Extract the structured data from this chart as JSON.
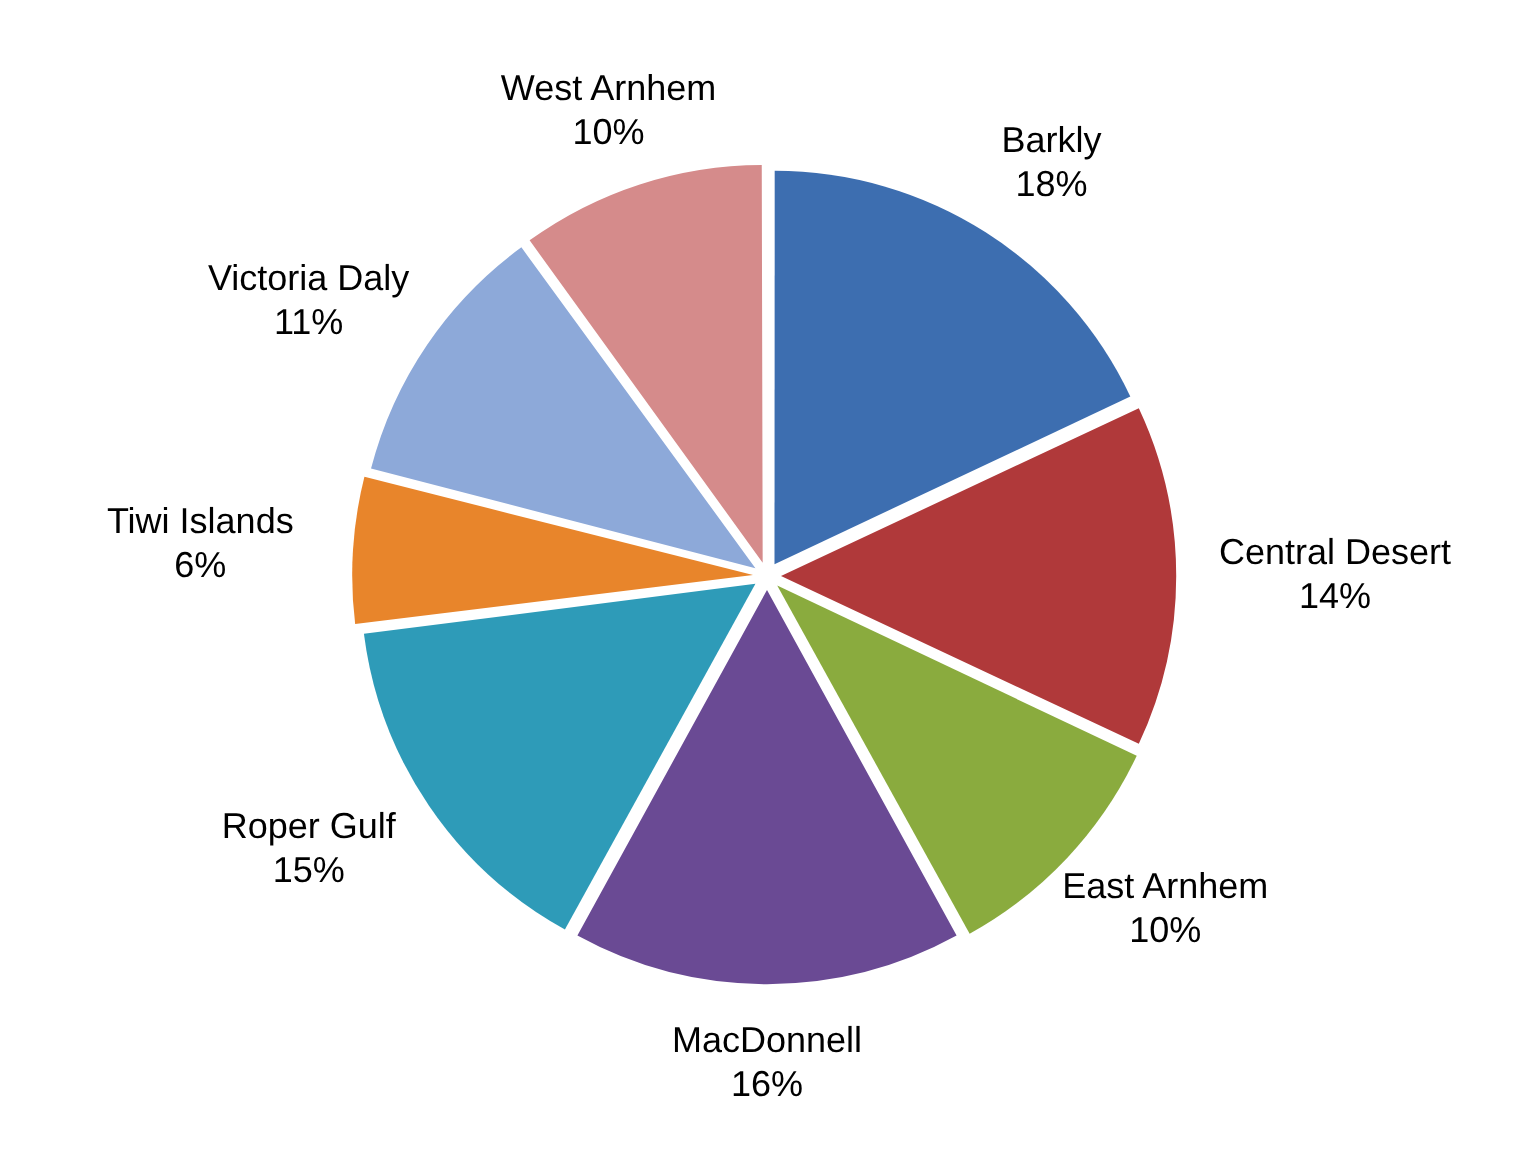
{
  "chart_data": {
    "type": "pie",
    "categories": [
      "Barkly",
      "Central Desert",
      "East Arnhem",
      "MacDonnell",
      "Roper Gulf",
      "Tiwi Islands",
      "Victoria Daly",
      "West Arnhem"
    ],
    "values": [
      18,
      14,
      10,
      16,
      15,
      6,
      11,
      10
    ],
    "value_labels": [
      "18%",
      "14%",
      "10%",
      "16%",
      "15%",
      "6%",
      "11%",
      "10%"
    ],
    "colors": [
      "#3d6eb0",
      "#b0393a",
      "#8aab3e",
      "#6a4a94",
      "#2e9bb8",
      "#e8852b",
      "#8da9d9",
      "#d58b8b"
    ],
    "legend": false
  }
}
